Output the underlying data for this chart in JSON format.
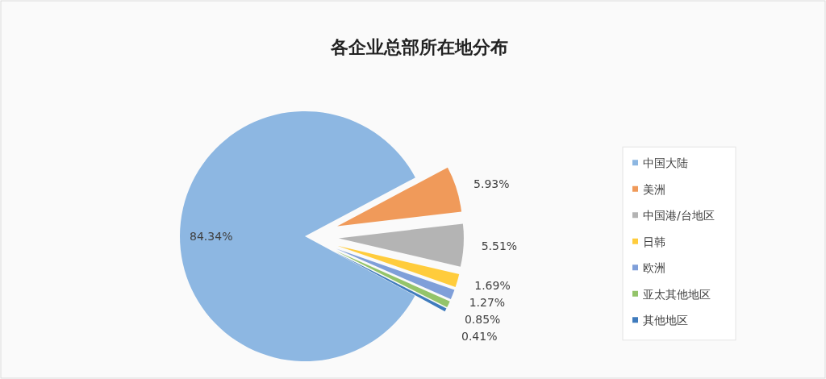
{
  "chart_data": {
    "type": "pie",
    "title": "各企业总部所在地分布",
    "categories": [
      "中国大陆",
      "美洲",
      "中国港/台地区",
      "日韩",
      "欧洲",
      "亚太其他地区",
      "其他地区"
    ],
    "values": [
      84.34,
      5.93,
      5.51,
      1.69,
      1.27,
      0.85,
      0.41
    ],
    "colors": [
      "#8db7e2",
      "#f09a5a",
      "#b4b4b4",
      "#ffcc3c",
      "#7f9fd9",
      "#94c46a",
      "#3f7bbd"
    ],
    "data_labels": true,
    "value_labels": [
      "84.34%",
      "5.93%",
      "5.51%",
      "1.69%",
      "1.27%",
      "0.85%",
      "0.41%"
    ],
    "legend": "right"
  }
}
